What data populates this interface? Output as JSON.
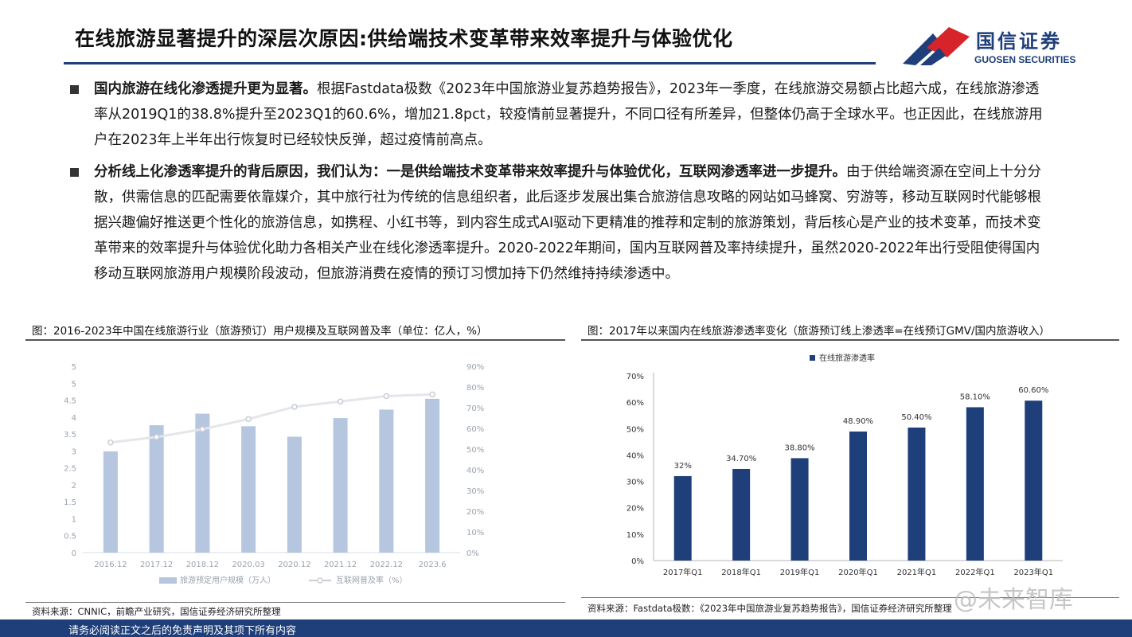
{
  "header": {
    "title": "在线旅游显著提升的深层次原因:供给端技术变革带来效率提升与体验优化",
    "logo_cn": "国信证券",
    "logo_en": "GUOSEN SECURITIES",
    "brand_colors": {
      "navy": "#1f3f7a",
      "red": "#d7242b"
    }
  },
  "paragraphs": [
    {
      "lead": "国内旅游在线化渗透提升更为显著。",
      "body": "根据Fastdata极数《2023年中国旅游业复苏趋势报告》，2023年一季度，在线旅游交易额占比超六成，在线旅游渗透率从2019Q1的38.8%提升至2023Q1的60.6%，增加21.8pct，较疫情前显著提升，不同口径有所差异，但整体仍高于全球水平。也正因此，在线旅游用户在2023年上半年出行恢复时已经较快反弹，超过疫情前高点。"
    },
    {
      "lead": "分析线上化渗透率提升的背后原因，我们认为：一是供给端技术变革带来效率提升与体验优化，互联网渗透率进一步提升。",
      "body": "由于供给端资源在空间上十分分散，供需信息的匹配需要依靠媒介，其中旅行社为传统的信息组织者，此后逐步发展出集合旅游信息攻略的网站如马蜂窝、穷游等，移动互联网时代能够根据兴趣偏好推送更个性化的旅游信息，如携程、小红书等，到内容生成式AI驱动下更精准的推荐和定制的旅游策划，背后核心是产业的技术变革，而技术变革带来的效率提升与体验优化助力各相关产业在线化渗透率提升。2020-2022年期间，国内互联网普及率持续提升，虽然2020-2022年出行受阻使得国内移动互联网旅游用户规模阶段波动，但旅游消费在疫情的预订习惯加持下仍然维持持续渗透中。"
    }
  ],
  "figures": {
    "left": {
      "title": "图：2016-2023年中国在线旅游行业（旅游预订）用户规模及互联网普及率（单位：亿人，%）",
      "source": "资料来源：CNNIC，前瞻产业研究，国信证券经济研究所整理"
    },
    "right": {
      "title": "图：2017年以来国内在线旅游渗透率变化（旅游预订线上渗透率=在线预订GMV/国内旅游收入）",
      "source": "资料来源：Fastdata极数：《2023年中国旅游业复苏趋势报告》，国信证券经济研究所整理"
    }
  },
  "chart_data": [
    {
      "type": "bar",
      "categories": [
        "2016.12",
        "2017.12",
        "2018.12",
        "2020.03",
        "2020.12",
        "2021.12",
        "2022.12",
        "2023.6"
      ],
      "series": [
        {
          "name": "旅游预定用户规模（万人）",
          "type": "bar",
          "axis": "left",
          "values": [
            2.99,
            3.76,
            4.1,
            3.73,
            3.42,
            3.97,
            4.22,
            4.54
          ],
          "color": "#b5c6de"
        },
        {
          "name": "互联网普及率（%）",
          "type": "line",
          "axis": "right",
          "values": [
            53.2,
            55.8,
            59.6,
            64.5,
            70.4,
            73.0,
            75.6,
            76.4
          ],
          "color": "#e3e6ea"
        }
      ],
      "yticks_left": [
        "0",
        "0.5",
        "1",
        "1.5",
        "2",
        "2.5",
        "3",
        "3.5",
        "4",
        "4.5",
        "5",
        "5"
      ],
      "ylim_left": [
        0,
        5.5
      ],
      "yticks_right": [
        "0%",
        "10%",
        "20%",
        "30%",
        "40%",
        "50%",
        "60%",
        "70%",
        "80%",
        "90%"
      ],
      "ylim_right": [
        0,
        90
      ],
      "legend_position": "bottom",
      "grid": false
    },
    {
      "type": "bar",
      "categories": [
        "2017年Q1",
        "2018年Q1",
        "2019年Q1",
        "2020年Q1",
        "2021年Q1",
        "2022年Q1",
        "2023年Q1"
      ],
      "series": [
        {
          "name": "在线旅游渗透率",
          "values": [
            32,
            34.7,
            38.8,
            48.9,
            50.4,
            58.1,
            60.6
          ],
          "color": "#1f3f7a"
        }
      ],
      "data_labels": [
        "32%",
        "34.70%",
        "38.80%",
        "48.90%",
        "50.40%",
        "58.10%",
        "60.60%"
      ],
      "yticks": [
        "0%",
        "10%",
        "20%",
        "30%",
        "40%",
        "50%",
        "60%",
        "70%"
      ],
      "ylim": [
        0,
        70
      ],
      "legend_position": "top-left",
      "grid": false
    }
  ],
  "footer": {
    "disclaimer": "请务必阅读正文之后的免责声明及其项下所有内容",
    "watermark": "@未来智库"
  }
}
